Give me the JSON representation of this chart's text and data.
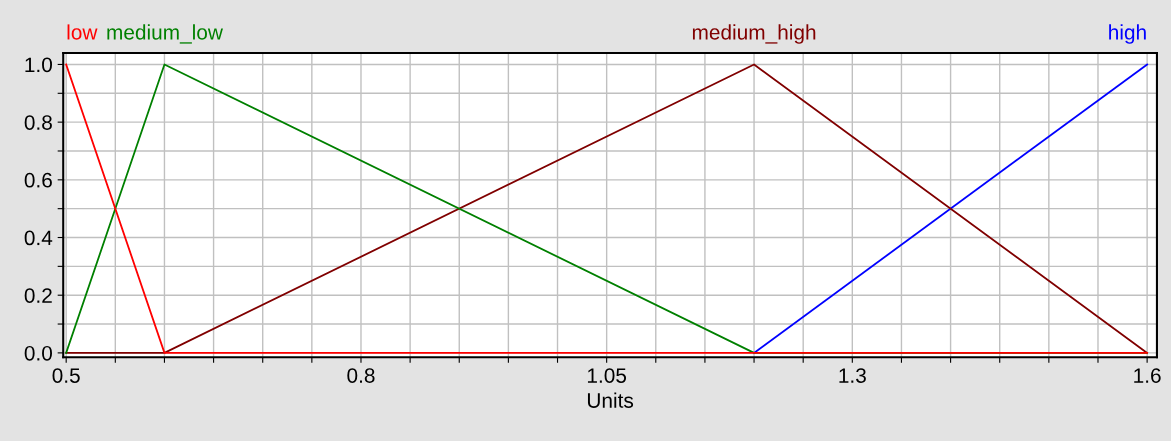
{
  "chart_data": {
    "type": "line",
    "xlabel": "Units",
    "series": [
      {
        "name": "high",
        "color": "#0000ff",
        "x": [
          1.2,
          1.6
        ],
        "values": [
          0,
          1
        ]
      },
      {
        "name": "medium_high",
        "color": "#800000",
        "x": [
          0.5,
          0.6,
          1.2,
          1.6
        ],
        "values": [
          0,
          0,
          1,
          0
        ]
      },
      {
        "name": "medium_low",
        "color": "#008000",
        "x": [
          0.5,
          0.6,
          1.2,
          1.6
        ],
        "values": [
          0,
          1,
          0,
          0
        ]
      },
      {
        "name": "low",
        "color": "#ff0000",
        "x": [
          0.5,
          0.6,
          1.6
        ],
        "values": [
          1,
          0,
          0
        ]
      }
    ],
    "xlim": [
      0.497,
      1.61
    ],
    "ylim": [
      -0.015,
      1.04
    ],
    "xticks": [
      0.5,
      {
        "value": 0.55,
        "label": null
      },
      {
        "value": 0.6,
        "label": null
      },
      {
        "value": 0.65,
        "label": null
      },
      {
        "value": 0.7,
        "label": null
      },
      {
        "value": 0.75,
        "label": null
      },
      0.8,
      {
        "value": 0.85,
        "label": null
      },
      {
        "value": 0.9,
        "label": null
      },
      {
        "value": 0.95,
        "label": null
      },
      {
        "value": 1.0,
        "label": null
      },
      1.05,
      {
        "value": 1.1,
        "label": null
      },
      {
        "value": 1.15,
        "label": null
      },
      {
        "value": 1.2,
        "label": null
      },
      {
        "value": 1.25,
        "label": null
      },
      1.3,
      {
        "value": 1.35,
        "label": null
      },
      {
        "value": 1.4,
        "label": null
      },
      {
        "value": 1.45,
        "label": null
      },
      {
        "value": 1.5,
        "label": null
      },
      {
        "value": 1.55,
        "label": null
      },
      1.6
    ],
    "yticks": [
      {
        "value": 0,
        "label": "0.0"
      },
      {
        "value": 0.1,
        "label": null
      },
      {
        "value": 0.2,
        "label": "0.2"
      },
      {
        "value": 0.3,
        "label": null
      },
      {
        "value": 0.4,
        "label": "0.4"
      },
      {
        "value": 0.5,
        "label": null
      },
      {
        "value": 0.6,
        "label": "0.6"
      },
      {
        "value": 0.7,
        "label": null
      },
      {
        "value": 0.8,
        "label": "0.8"
      },
      {
        "value": 0.9,
        "label": null
      },
      {
        "value": 1.0,
        "label": "1.0"
      }
    ],
    "grid": true,
    "legend": false,
    "marker": "none",
    "line_style": "solid"
  }
}
